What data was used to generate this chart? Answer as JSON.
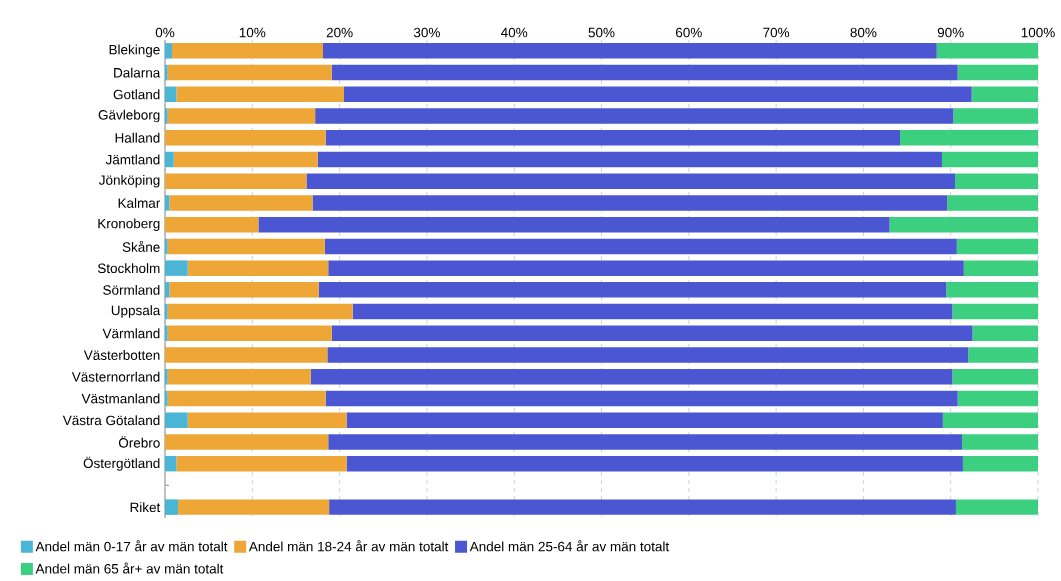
{
  "chart_data": {
    "type": "bar",
    "orientation": "horizontal",
    "stacked": true,
    "categories": [
      "Blekinge",
      "Dalarna",
      "Gotland",
      "Gävleborg",
      "Halland",
      "Jämtland",
      "Jönköping",
      "Kalmar",
      "Kronoberg",
      "Skåne",
      "Stockholm",
      "Sörmland",
      "Uppsala",
      "Värmland",
      "Västerbotten",
      "Västernorrland",
      "Västmanland",
      "Västra Götaland",
      "Örebro",
      "Östergötland",
      null,
      "Riket"
    ],
    "series": [
      {
        "name": "Andel män 0-17 år av män totalt",
        "color": "#4bb5d6",
        "values": [
          0.8,
          0.3,
          1.3,
          0.3,
          0,
          1.0,
          0,
          0.5,
          0,
          0.3,
          2.6,
          0.5,
          0.3,
          0.3,
          0,
          0.3,
          0.3,
          2.6,
          0,
          1.3,
          null,
          1.5
        ]
      },
      {
        "name": "Andel män 18-24 år av män totalt",
        "color": "#eea737",
        "values": [
          17.3,
          18.8,
          19.2,
          16.9,
          18.4,
          16.5,
          16.2,
          16.4,
          10.7,
          18.0,
          16.1,
          17.1,
          21.2,
          18.8,
          18.6,
          16.4,
          18.1,
          18.2,
          18.7,
          19.5,
          null,
          17.3
        ]
      },
      {
        "name": "Andel män 25-64 år av män totalt",
        "color": "#4b56d2",
        "values": [
          70.3,
          71.7,
          71.9,
          73.1,
          65.8,
          71.5,
          74.3,
          72.7,
          72.3,
          72.4,
          72.8,
          71.9,
          68.7,
          73.4,
          73.4,
          73.5,
          72.4,
          68.3,
          72.6,
          70.6,
          null,
          71.8
        ]
      },
      {
        "name": "Andel män 65 år+ av män totalt",
        "color": "#3dcf80",
        "values": [
          11.6,
          9.2,
          7.6,
          9.7,
          15.8,
          11.0,
          9.5,
          10.4,
          17.0,
          9.3,
          8.5,
          10.5,
          9.8,
          7.5,
          8.0,
          9.8,
          9.2,
          10.9,
          8.7,
          8.6,
          null,
          9.4
        ]
      }
    ],
    "xlim": [
      0,
      100
    ],
    "xticks": [
      {
        "value": 0,
        "label": "0%"
      },
      {
        "value": 10,
        "label": "10%"
      },
      {
        "value": 20,
        "label": "20%"
      },
      {
        "value": 30,
        "label": "30%"
      },
      {
        "value": 40,
        "label": "40%"
      },
      {
        "value": 50,
        "label": "50%"
      },
      {
        "value": 60,
        "label": "60%"
      },
      {
        "value": 70,
        "label": "70%"
      },
      {
        "value": 80,
        "label": "80%"
      },
      {
        "value": 90,
        "label": "90%"
      },
      {
        "value": 100,
        "label": "100%"
      }
    ],
    "grid": "x",
    "legend": "bottom"
  }
}
